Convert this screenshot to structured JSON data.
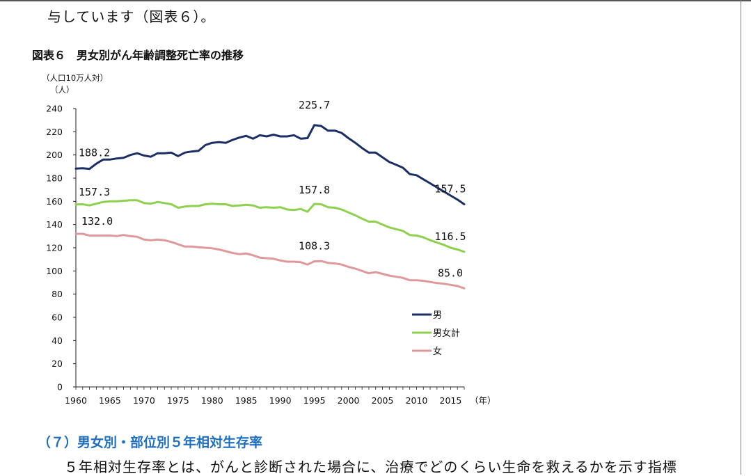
{
  "header_text": "与しています（図表６）。",
  "figure_title": "図表６　男女別がん年齢調整死亡率の推移",
  "unit_line1": "（人口10万人対）",
  "unit_line2": "（人）",
  "section_heading": "（７）男女別・部位別５年相対生存率",
  "paragraph_text": "５年相対生存率とは、がんと診断された場合に、治療でどのくらい生命を救えるかを示す指標",
  "chart_data": {
    "type": "line",
    "title": "図表６　男女別がん年齢調整死亡率の推移",
    "ylabel": "（人口10万人対）（人）",
    "xlabel": "（年）",
    "ylim": [
      0,
      240
    ],
    "xlim": [
      1960,
      2017
    ],
    "x_ticks": [
      "1960",
      "1965",
      "1970",
      "1975",
      "1980",
      "1985",
      "1990",
      "1995",
      "2000",
      "2005",
      "2010",
      "2015"
    ],
    "y_ticks": [
      "0",
      "20",
      "40",
      "60",
      "80",
      "100",
      "120",
      "140",
      "160",
      "180",
      "200",
      "220",
      "240"
    ],
    "x_unit_label": "（年）",
    "legend_position": "right",
    "x": [
      1960,
      1961,
      1962,
      1963,
      1964,
      1965,
      1966,
      1967,
      1968,
      1969,
      1970,
      1971,
      1972,
      1973,
      1974,
      1975,
      1976,
      1977,
      1978,
      1979,
      1980,
      1981,
      1982,
      1983,
      1984,
      1985,
      1986,
      1987,
      1988,
      1989,
      1990,
      1991,
      1992,
      1993,
      1994,
      1995,
      1996,
      1997,
      1998,
      1999,
      2000,
      2001,
      2002,
      2003,
      2004,
      2005,
      2006,
      2007,
      2008,
      2009,
      2010,
      2011,
      2012,
      2013,
      2014,
      2015,
      2016,
      2017
    ],
    "series": [
      {
        "name": "男",
        "color": "#1b2f66",
        "values": [
          188.2,
          188.5,
          188.0,
          192.5,
          196.0,
          196.0,
          197.0,
          197.5,
          200.0,
          201.5,
          199.5,
          198.5,
          201.5,
          201.5,
          202.0,
          199.0,
          202.0,
          203.0,
          203.5,
          208.5,
          210.5,
          211.0,
          210.5,
          213.0,
          215.0,
          216.5,
          214.0,
          217.0,
          216.0,
          217.5,
          216.0,
          216.0,
          217.0,
          214.0,
          214.5,
          225.7,
          225.0,
          221.0,
          221.0,
          219.0,
          214.5,
          210.5,
          206.0,
          202.0,
          202.0,
          198.0,
          194.0,
          191.5,
          189.0,
          183.5,
          182.5,
          179.0,
          175.5,
          172.0,
          168.5,
          165.0,
          161.5,
          157.5
        ]
      },
      {
        "name": "男女計",
        "color": "#8ed14f",
        "values": [
          157.3,
          157.5,
          156.5,
          158.0,
          159.5,
          160.0,
          160.0,
          160.5,
          161.0,
          161.0,
          158.5,
          158.0,
          159.5,
          158.5,
          157.5,
          154.5,
          155.5,
          156.0,
          156.0,
          157.5,
          158.0,
          157.5,
          157.5,
          156.0,
          156.5,
          157.0,
          156.5,
          154.5,
          155.0,
          154.5,
          155.0,
          153.0,
          152.5,
          153.5,
          151.0,
          157.8,
          157.5,
          155.0,
          154.5,
          153.0,
          150.5,
          148.0,
          145.0,
          142.5,
          142.5,
          140.0,
          137.5,
          136.0,
          134.5,
          131.0,
          130.5,
          129.0,
          126.5,
          124.5,
          122.5,
          120.0,
          118.5,
          116.5
        ]
      },
      {
        "name": "女",
        "color": "#e0999b",
        "values": [
          132.0,
          132.0,
          130.5,
          130.5,
          130.5,
          130.5,
          130.0,
          131.0,
          130.0,
          129.5,
          127.0,
          126.5,
          127.0,
          126.5,
          125.0,
          123.0,
          121.0,
          121.0,
          120.5,
          120.0,
          119.5,
          118.5,
          117.0,
          115.5,
          114.5,
          115.0,
          113.5,
          111.5,
          111.0,
          110.5,
          109.0,
          108.0,
          108.0,
          107.5,
          105.5,
          108.3,
          108.5,
          107.0,
          106.5,
          105.5,
          103.5,
          102.0,
          100.0,
          98.0,
          99.0,
          97.5,
          96.0,
          95.0,
          94.0,
          92.0,
          92.0,
          91.5,
          90.5,
          89.5,
          89.0,
          88.0,
          87.0,
          85.0
        ]
      }
    ],
    "annotations": [
      {
        "text": "225.7",
        "x": 1995,
        "y": 225.7
      },
      {
        "text": "188.2",
        "x": 1960,
        "y": 188.2
      },
      {
        "text": "157.5",
        "x": 2017,
        "y": 157.5
      },
      {
        "text": "157.3",
        "x": 1960,
        "y": 157.3
      },
      {
        "text": "157.8",
        "x": 1995,
        "y": 157.8
      },
      {
        "text": "116.5",
        "x": 2017,
        "y": 116.5
      },
      {
        "text": "132.0",
        "x": 1960,
        "y": 132.0
      },
      {
        "text": "108.3",
        "x": 1995,
        "y": 108.3
      },
      {
        "text": "85.0",
        "x": 2017,
        "y": 85.0
      }
    ]
  }
}
